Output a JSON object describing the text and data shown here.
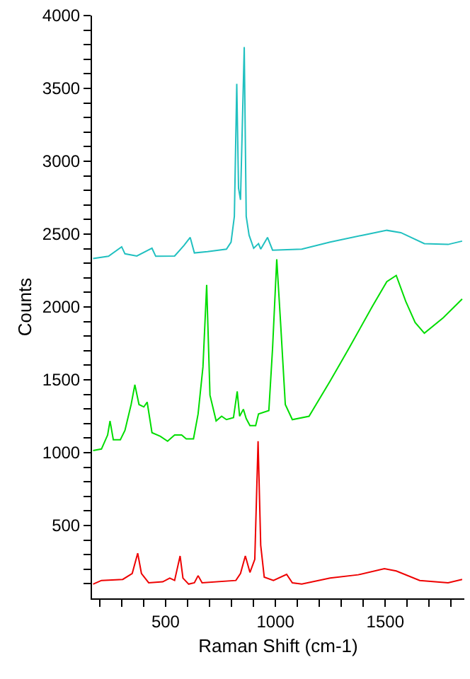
{
  "chart_data": {
    "type": "line",
    "xlabel": "Raman Shift (cm-1)",
    "ylabel": "Counts",
    "xlim": [
      165,
      1860
    ],
    "xticks": [
      {
        "value": 200,
        "label": null
      },
      {
        "value": 300,
        "label": null
      },
      {
        "value": 400,
        "label": null
      },
      500,
      {
        "value": 600,
        "label": null
      },
      {
        "value": 700,
        "label": null
      },
      {
        "value": 800,
        "label": null
      },
      {
        "value": 900,
        "label": null
      },
      1000,
      {
        "value": 1100,
        "label": null
      },
      {
        "value": 1200,
        "label": null
      },
      {
        "value": 1300,
        "label": null
      },
      {
        "value": 1400,
        "label": null
      },
      1500,
      {
        "value": 1600,
        "label": null
      },
      {
        "value": 1700,
        "label": null
      },
      {
        "value": 1800,
        "label": null
      }
    ],
    "ylim": [
      0,
      4000
    ],
    "yticks": [
      {
        "value": 100,
        "label": null
      },
      {
        "value": 200,
        "label": null
      },
      {
        "value": 300,
        "label": null
      },
      {
        "value": 400,
        "label": null
      },
      500,
      {
        "value": 600,
        "label": null
      },
      {
        "value": 700,
        "label": null
      },
      {
        "value": 800,
        "label": null
      },
      {
        "value": 900,
        "label": null
      },
      1000,
      {
        "value": 1100,
        "label": null
      },
      {
        "value": 1200,
        "label": null
      },
      {
        "value": 1300,
        "label": null
      },
      {
        "value": 1400,
        "label": null
      },
      1500,
      {
        "value": 1600,
        "label": null
      },
      {
        "value": 1700,
        "label": null
      },
      {
        "value": 1800,
        "label": null
      },
      {
        "value": 1900,
        "label": null
      },
      2000,
      {
        "value": 2100,
        "label": null
      },
      {
        "value": 2200,
        "label": null
      },
      {
        "value": 2300,
        "label": null
      },
      {
        "value": 2400,
        "label": null
      },
      2500,
      {
        "value": 2600,
        "label": null
      },
      {
        "value": 2700,
        "label": null
      },
      {
        "value": 2800,
        "label": null
      },
      {
        "value": 2900,
        "label": null
      },
      3000,
      {
        "value": 3100,
        "label": null
      },
      {
        "value": 3200,
        "label": null
      },
      {
        "value": 3300,
        "label": null
      },
      {
        "value": 3400,
        "label": null
      },
      3500,
      {
        "value": 3600,
        "label": null
      },
      {
        "value": 3700,
        "label": null
      },
      {
        "value": 3800,
        "label": null
      },
      {
        "value": 3900,
        "label": null
      },
      4000
    ],
    "marker": "none",
    "line_style": "solid",
    "series": [
      {
        "color": "#20c0c0",
        "x": [
          170,
          240,
          300,
          315,
          369,
          438,
          455,
          541,
          584,
          612,
          631,
          691,
          777,
          798,
          813,
          824,
          832,
          841,
          858,
          867,
          880,
          901,
          923,
          933,
          964,
          987,
          1120,
          1249,
          1399,
          1507,
          1571,
          1678,
          1786,
          1850
        ],
        "values": [
          2332,
          2348,
          2413,
          2365,
          2350,
          2403,
          2348,
          2350,
          2423,
          2477,
          2371,
          2380,
          2397,
          2445,
          2622,
          3532,
          2816,
          2735,
          3784,
          2622,
          2493,
          2403,
          2435,
          2397,
          2477,
          2390,
          2397,
          2445,
          2493,
          2526,
          2510,
          2435,
          2429,
          2452
        ]
      },
      {
        "color": "#00dd00",
        "x": [
          170,
          208,
          236,
          247,
          262,
          294,
          315,
          343,
          360,
          379,
          401,
          416,
          438,
          476,
          509,
          541,
          573,
          594,
          627,
          648,
          670,
          687,
          702,
          730,
          755,
          777,
          809,
          826,
          837,
          854,
          867,
          884,
          910,
          923,
          970,
          987,
          1006,
          1024,
          1045,
          1077,
          1153,
          1249,
          1335,
          1442,
          1507,
          1550,
          1593,
          1636,
          1678,
          1764,
          1807,
          1850
        ],
        "values": [
          1015,
          1025,
          1121,
          1218,
          1089,
          1089,
          1153,
          1330,
          1466,
          1330,
          1314,
          1347,
          1137,
          1112,
          1079,
          1121,
          1121,
          1095,
          1095,
          1266,
          1588,
          2151,
          1395,
          1218,
          1250,
          1227,
          1240,
          1421,
          1250,
          1298,
          1234,
          1186,
          1186,
          1266,
          1289,
          1717,
          2328,
          1878,
          1330,
          1227,
          1250,
          1491,
          1717,
          2006,
          2174,
          2216,
          2039,
          1894,
          1820,
          1926,
          1990,
          2055
        ]
      },
      {
        "color": "#ee0000",
        "x": [
          170,
          208,
          305,
          348,
          373,
          390,
          423,
          487,
          519,
          541,
          566,
          579,
          605,
          631,
          648,
          666,
          820,
          841,
          863,
          884,
          906,
          921,
          933,
          949,
          991,
          1051,
          1077,
          1120,
          1249,
          1377,
          1496,
          1550,
          1657,
          1786,
          1850
        ],
        "values": [
          98,
          123,
          130,
          171,
          310,
          171,
          107,
          114,
          139,
          123,
          291,
          139,
          98,
          107,
          156,
          107,
          123,
          171,
          291,
          178,
          268,
          1079,
          365,
          146,
          123,
          165,
          107,
          98,
          139,
          162,
          204,
          188,
          123,
          107,
          130
        ]
      }
    ]
  }
}
